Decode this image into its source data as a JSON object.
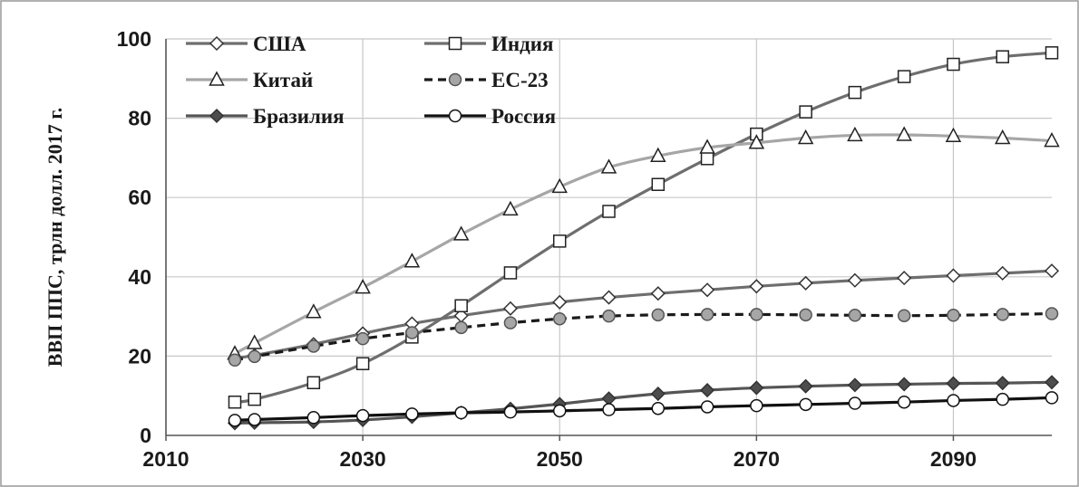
{
  "chart_data": {
    "type": "line",
    "title": "",
    "xlabel": "",
    "ylabel": "ВВП ППС, трлн долл. 2017 г.",
    "xlim": [
      2010,
      2100
    ],
    "ylim": [
      0,
      100
    ],
    "x_ticks": [
      2010,
      2030,
      2050,
      2070,
      2090
    ],
    "y_ticks": [
      0,
      20,
      40,
      60,
      80,
      100
    ],
    "grid": "horizontal",
    "legend_placement": "top-left",
    "x": [
      2017,
      2019,
      2025,
      2030,
      2035,
      2040,
      2045,
      2050,
      2055,
      2060,
      2065,
      2070,
      2075,
      2080,
      2085,
      2090,
      2095,
      2100
    ],
    "series": [
      {
        "name": "США",
        "marker": "diamond-open",
        "line_color": "#6e6e6e",
        "dash": "solid",
        "values": [
          19.5,
          20.2,
          23.0,
          25.7,
          28.2,
          30.2,
          32.0,
          33.6,
          34.8,
          35.8,
          36.7,
          37.6,
          38.4,
          39.1,
          39.7,
          40.3,
          40.9,
          41.5
        ]
      },
      {
        "name": "Индия",
        "marker": "square-open",
        "line_color": "#6e6e6e",
        "dash": "solid",
        "values": [
          8.4,
          9.1,
          13.3,
          18.1,
          24.8,
          32.7,
          41.0,
          49.0,
          56.5,
          63.3,
          69.8,
          76.0,
          81.6,
          86.5,
          90.5,
          93.6,
          95.5,
          96.5
        ]
      },
      {
        "name": "Китай",
        "marker": "triangle-open",
        "line_color": "#a6a6a6",
        "dash": "solid",
        "values": [
          20.6,
          23.3,
          31.1,
          37.3,
          43.9,
          50.7,
          57.0,
          62.7,
          67.6,
          70.5,
          72.6,
          73.8,
          75.0,
          75.7,
          75.8,
          75.5,
          75.0,
          74.3
        ]
      },
      {
        "name": "ЕС-23",
        "marker": "circle-gray",
        "line_color": "#1a1a1a",
        "dash": "dashed",
        "values": [
          19.0,
          19.9,
          22.5,
          24.4,
          25.9,
          27.2,
          28.4,
          29.4,
          30.1,
          30.4,
          30.5,
          30.5,
          30.4,
          30.3,
          30.2,
          30.3,
          30.5,
          30.7
        ]
      },
      {
        "name": "Бразилия",
        "marker": "diamond-filled",
        "line_color": "#555555",
        "dash": "solid",
        "values": [
          3.1,
          3.2,
          3.4,
          3.9,
          4.7,
          5.7,
          6.7,
          7.9,
          9.3,
          10.5,
          11.4,
          12.0,
          12.4,
          12.7,
          12.9,
          13.1,
          13.2,
          13.4
        ]
      },
      {
        "name": "Россия",
        "marker": "circle-open",
        "line_color": "#111111",
        "dash": "solid",
        "values": [
          3.8,
          4.0,
          4.5,
          5.0,
          5.4,
          5.7,
          5.9,
          6.2,
          6.5,
          6.8,
          7.2,
          7.5,
          7.8,
          8.1,
          8.4,
          8.8,
          9.1,
          9.5
        ]
      }
    ]
  }
}
